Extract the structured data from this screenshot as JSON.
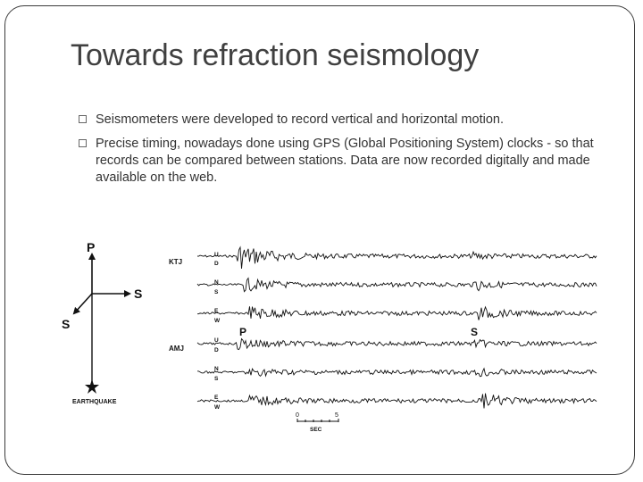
{
  "slide": {
    "title": "Towards refraction seismology",
    "bullets": [
      "Seismometers were developed to record vertical and horizontal motion.",
      "Precise timing, nowadays done using GPS (Global Positioning System) clocks  - so that records can be compared between stations. Data are now recorded digitally and made available on the web."
    ]
  },
  "figure": {
    "compass": {
      "p_label": "P",
      "s_right_label": "S",
      "s_left_label": "S",
      "earthquake_label": "EARTHQUAKE"
    },
    "stations": [
      {
        "name": "KTJ",
        "traces": [
          {
            "component": [
              "U",
              "D"
            ]
          },
          {
            "component": [
              "N",
              "S"
            ]
          },
          {
            "component": [
              "E",
              "W"
            ]
          }
        ]
      },
      {
        "name": "AMJ",
        "traces": [
          {
            "component": [
              "U",
              "D"
            ]
          },
          {
            "component": [
              "N",
              "S"
            ]
          },
          {
            "component": [
              "E",
              "W"
            ]
          }
        ]
      }
    ],
    "phase_labels": {
      "p": "P",
      "s": "S"
    },
    "scale_bar": {
      "start": "0",
      "end": "5",
      "unit": "SEC"
    }
  }
}
